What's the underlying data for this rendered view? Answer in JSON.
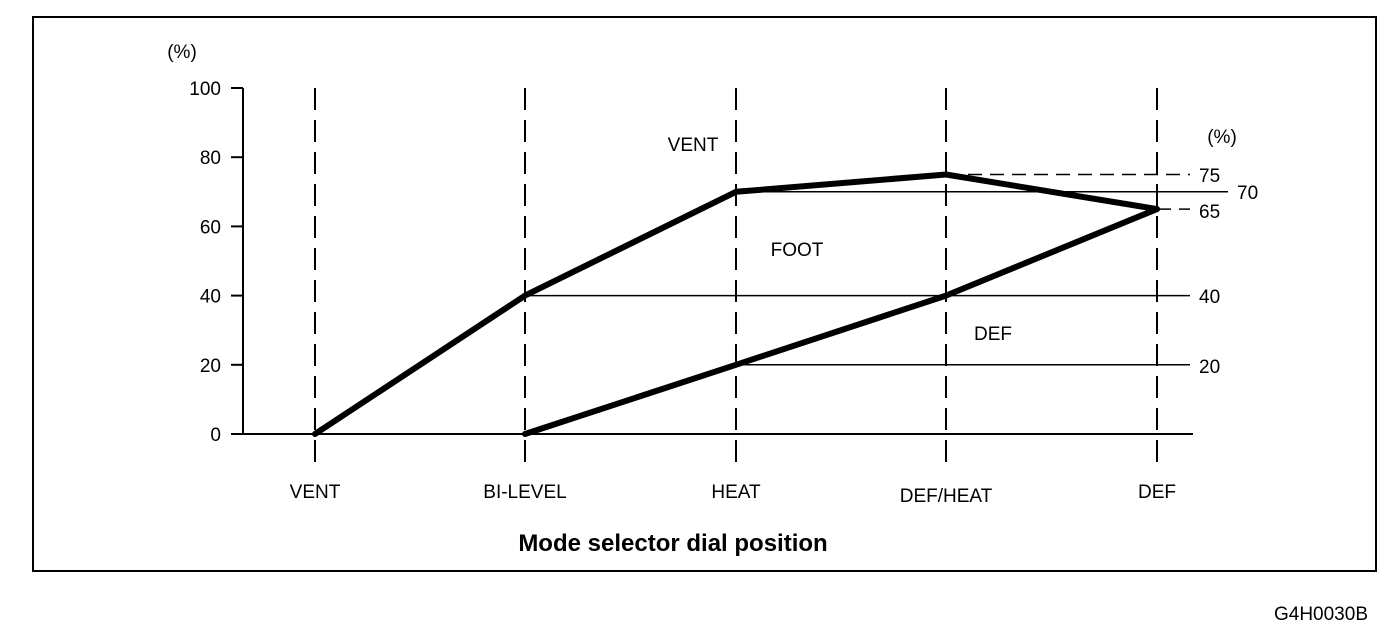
{
  "figure_code": "G4H0030B",
  "chart_data": {
    "type": "line",
    "xlabel": "Mode selector dial position",
    "categories": [
      "VENT",
      "BI-LEVEL",
      "HEAT",
      "DEF/HEAT",
      "DEF"
    ],
    "y_unit_left": "(%)",
    "y_unit_right": "(%)",
    "ylim": [
      0,
      100
    ],
    "yticks": [
      0,
      20,
      40,
      60,
      80,
      100
    ],
    "right_ticks": [
      "75",
      "70",
      "65",
      "40",
      "20"
    ],
    "series": [
      {
        "values": [
          0,
          40,
          70,
          75,
          65
        ]
      },
      {
        "values": [
          null,
          0,
          20,
          40,
          65
        ]
      }
    ],
    "reference_levels": [
      {
        "value": 75,
        "label": "75",
        "from_category": "DEF/HEAT"
      },
      {
        "value": 70,
        "label": "70",
        "from_category": "HEAT"
      },
      {
        "value": 65,
        "label": "65",
        "from_category": "DEF"
      },
      {
        "value": 40,
        "label": "40",
        "from_category": "BI-LEVEL"
      },
      {
        "value": 20,
        "label": "20",
        "from_category": "HEAT"
      }
    ],
    "region_labels": [
      "VENT",
      "FOOT",
      "DEF"
    ],
    "grid": false,
    "legend": "none"
  }
}
